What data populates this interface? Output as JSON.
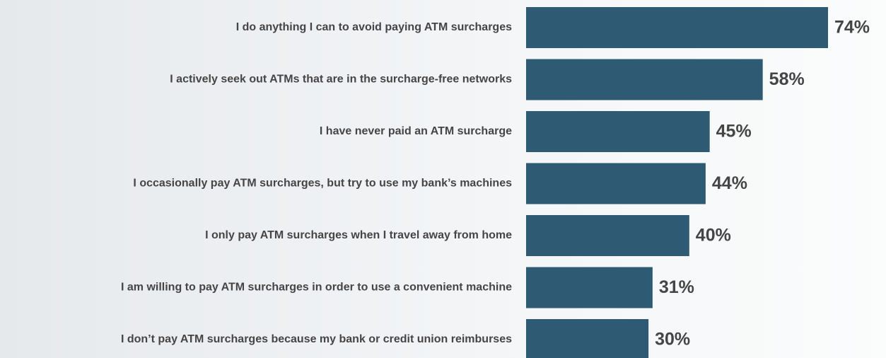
{
  "chart_data": {
    "type": "bar",
    "orientation": "horizontal",
    "categories": [
      "I do anything I can to avoid paying ATM surcharges",
      "I actively seek out ATMs that are in the surcharge-free networks",
      "I have never paid an ATM surcharge",
      "I occasionally pay ATM surcharges, but try to use my bank’s machines",
      "I only pay ATM surcharges when I travel away from home",
      "I am willing to pay ATM surcharges in order to use a convenient machine",
      "I don’t pay ATM surcharges because my bank or credit union reimburses"
    ],
    "values": [
      74,
      58,
      45,
      44,
      40,
      31,
      30
    ],
    "value_labels": [
      "74%",
      "58%",
      "45%",
      "44%",
      "40%",
      "31%",
      "30%"
    ],
    "color": "#2e5b73"
  }
}
